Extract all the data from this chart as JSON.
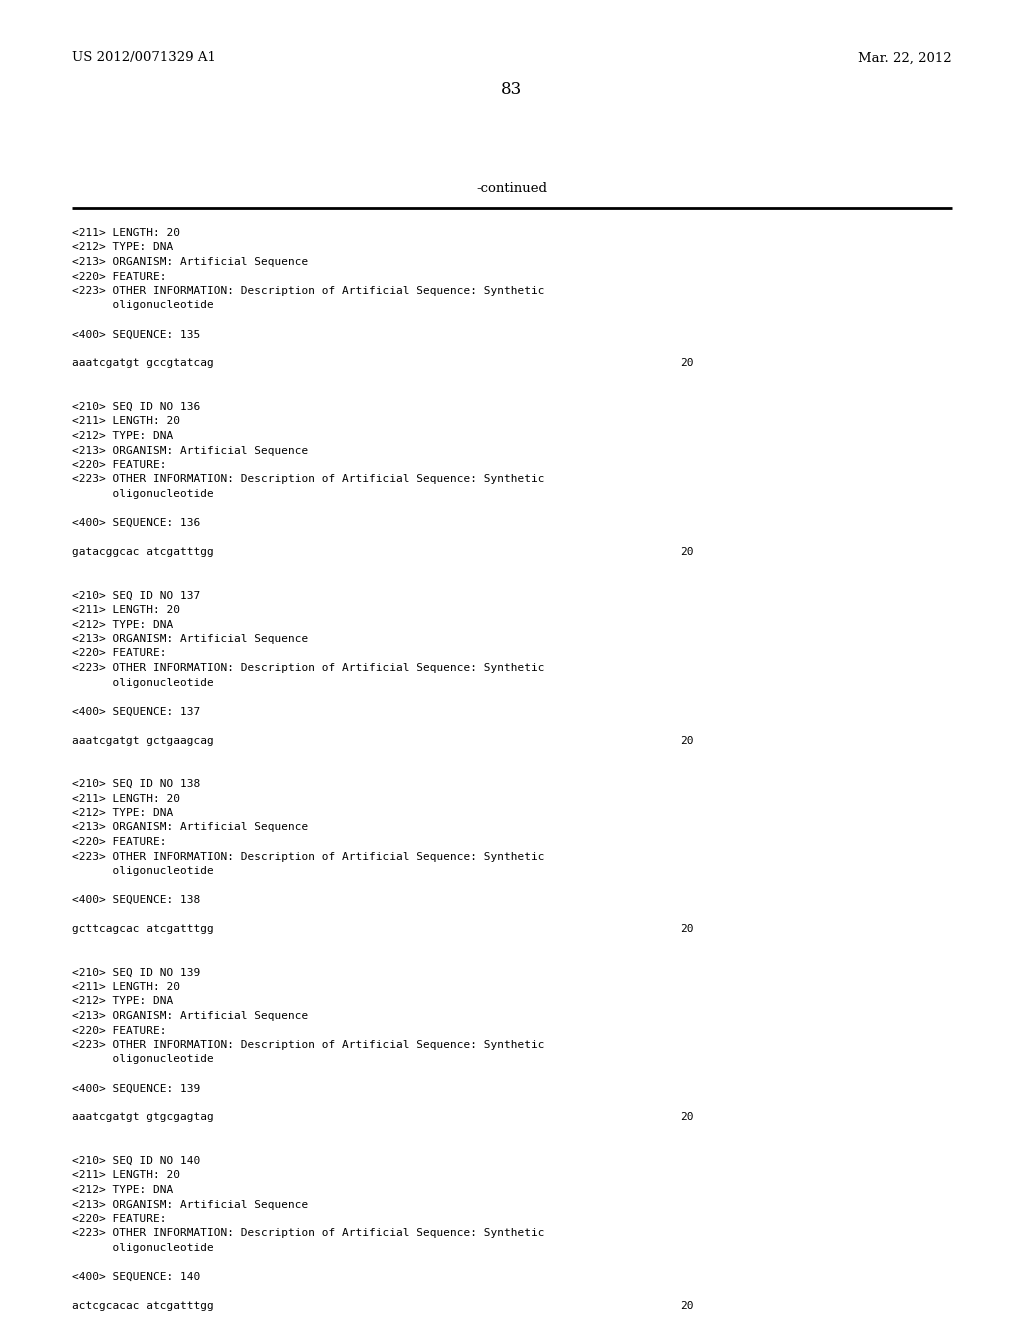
{
  "background_color": "#ffffff",
  "header_left": "US 2012/0071329 A1",
  "header_right": "Mar. 22, 2012",
  "page_number": "83",
  "continued_label": "-continued",
  "content_lines": [
    "<211> LENGTH: 20",
    "<212> TYPE: DNA",
    "<213> ORGANISM: Artificial Sequence",
    "<220> FEATURE:",
    "<223> OTHER INFORMATION: Description of Artificial Sequence: Synthetic",
    "      oligonucleotide",
    "",
    "<400> SEQUENCE: 135",
    "",
    "aaatcgatgt gccgtatcag",
    "",
    "",
    "<210> SEQ ID NO 136",
    "<211> LENGTH: 20",
    "<212> TYPE: DNA",
    "<213> ORGANISM: Artificial Sequence",
    "<220> FEATURE:",
    "<223> OTHER INFORMATION: Description of Artificial Sequence: Synthetic",
    "      oligonucleotide",
    "",
    "<400> SEQUENCE: 136",
    "",
    "gatacggcac atcgatttgg",
    "",
    "",
    "<210> SEQ ID NO 137",
    "<211> LENGTH: 20",
    "<212> TYPE: DNA",
    "<213> ORGANISM: Artificial Sequence",
    "<220> FEATURE:",
    "<223> OTHER INFORMATION: Description of Artificial Sequence: Synthetic",
    "      oligonucleotide",
    "",
    "<400> SEQUENCE: 137",
    "",
    "aaatcgatgt gctgaagcag",
    "",
    "",
    "<210> SEQ ID NO 138",
    "<211> LENGTH: 20",
    "<212> TYPE: DNA",
    "<213> ORGANISM: Artificial Sequence",
    "<220> FEATURE:",
    "<223> OTHER INFORMATION: Description of Artificial Sequence: Synthetic",
    "      oligonucleotide",
    "",
    "<400> SEQUENCE: 138",
    "",
    "gcttcagcac atcgatttgg",
    "",
    "",
    "<210> SEQ ID NO 139",
    "<211> LENGTH: 20",
    "<212> TYPE: DNA",
    "<213> ORGANISM: Artificial Sequence",
    "<220> FEATURE:",
    "<223> OTHER INFORMATION: Description of Artificial Sequence: Synthetic",
    "      oligonucleotide",
    "",
    "<400> SEQUENCE: 139",
    "",
    "aaatcgatgt gtgcgagtag",
    "",
    "",
    "<210> SEQ ID NO 140",
    "<211> LENGTH: 20",
    "<212> TYPE: DNA",
    "<213> ORGANISM: Artificial Sequence",
    "<220> FEATURE:",
    "<223> OTHER INFORMATION: Description of Artificial Sequence: Synthetic",
    "      oligonucleotide",
    "",
    "<400> SEQUENCE: 140",
    "",
    "actcgcacac atcgatttgg"
  ],
  "sequence_lines": [
    9,
    22,
    35,
    48,
    61,
    74
  ],
  "header_fontsize": 9.5,
  "page_num_fontsize": 12,
  "continued_fontsize": 9.5,
  "content_fontsize": 8.0,
  "mono_font": "DejaVu Sans Mono",
  "serif_font": "DejaVu Serif",
  "text_color": "#000000",
  "line_color": "#000000"
}
